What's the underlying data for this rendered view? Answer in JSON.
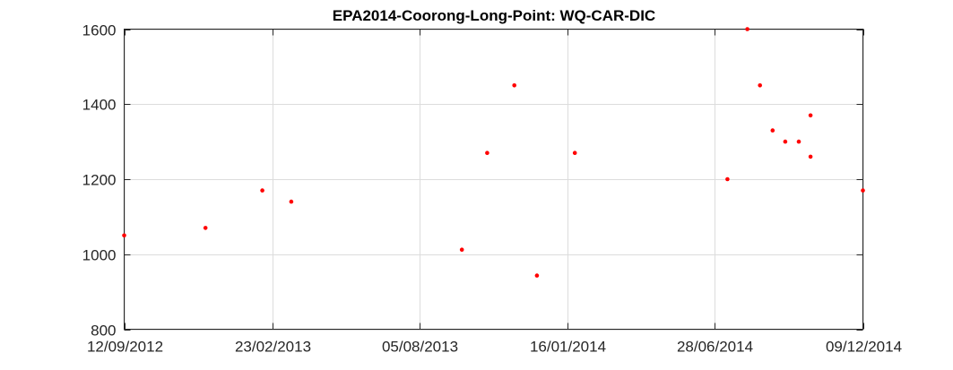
{
  "chart_data": {
    "type": "scatter",
    "title": "EPA2014-Coorong-Long-Point: WQ-CAR-DIC",
    "xlabel": "",
    "ylabel": "",
    "x_type": "date",
    "xlim": [
      "2012-09-12",
      "2014-12-09"
    ],
    "ylim": [
      800,
      1600
    ],
    "x_ticks": [
      "2012-09-12",
      "2013-02-23",
      "2013-08-05",
      "2014-01-16",
      "2014-06-28",
      "2014-12-09"
    ],
    "x_tick_labels": [
      "12/09/2012",
      "23/02/2013",
      "05/08/2013",
      "16/01/2014",
      "28/06/2014",
      "09/12/2014"
    ],
    "y_ticks": [
      800,
      1000,
      1200,
      1400,
      1600
    ],
    "y_tick_labels": [
      "800",
      "1000",
      "1200",
      "1400",
      "1600"
    ],
    "grid": true,
    "legend": "none",
    "marker_color": "#ff0000",
    "series": [
      {
        "points": [
          {
            "x": "2012-09-12",
            "y": 1050
          },
          {
            "x": "2012-12-11",
            "y": 1070
          },
          {
            "x": "2013-02-12",
            "y": 1170
          },
          {
            "x": "2013-03-16",
            "y": 1140
          },
          {
            "x": "2013-09-21",
            "y": 1012
          },
          {
            "x": "2013-10-19",
            "y": 1270
          },
          {
            "x": "2013-11-18",
            "y": 1450
          },
          {
            "x": "2013-12-13",
            "y": 943
          },
          {
            "x": "2014-01-24",
            "y": 1270
          },
          {
            "x": "2014-07-12",
            "y": 1200
          },
          {
            "x": "2014-08-03",
            "y": 1600
          },
          {
            "x": "2014-08-17",
            "y": 1450
          },
          {
            "x": "2014-08-31",
            "y": 1330
          },
          {
            "x": "2014-09-14",
            "y": 1300
          },
          {
            "x": "2014-09-29",
            "y": 1300
          },
          {
            "x": "2014-10-12",
            "y": 1370
          },
          {
            "x": "2014-10-12",
            "y": 1260
          },
          {
            "x": "2014-12-09",
            "y": 1170
          }
        ]
      }
    ]
  }
}
